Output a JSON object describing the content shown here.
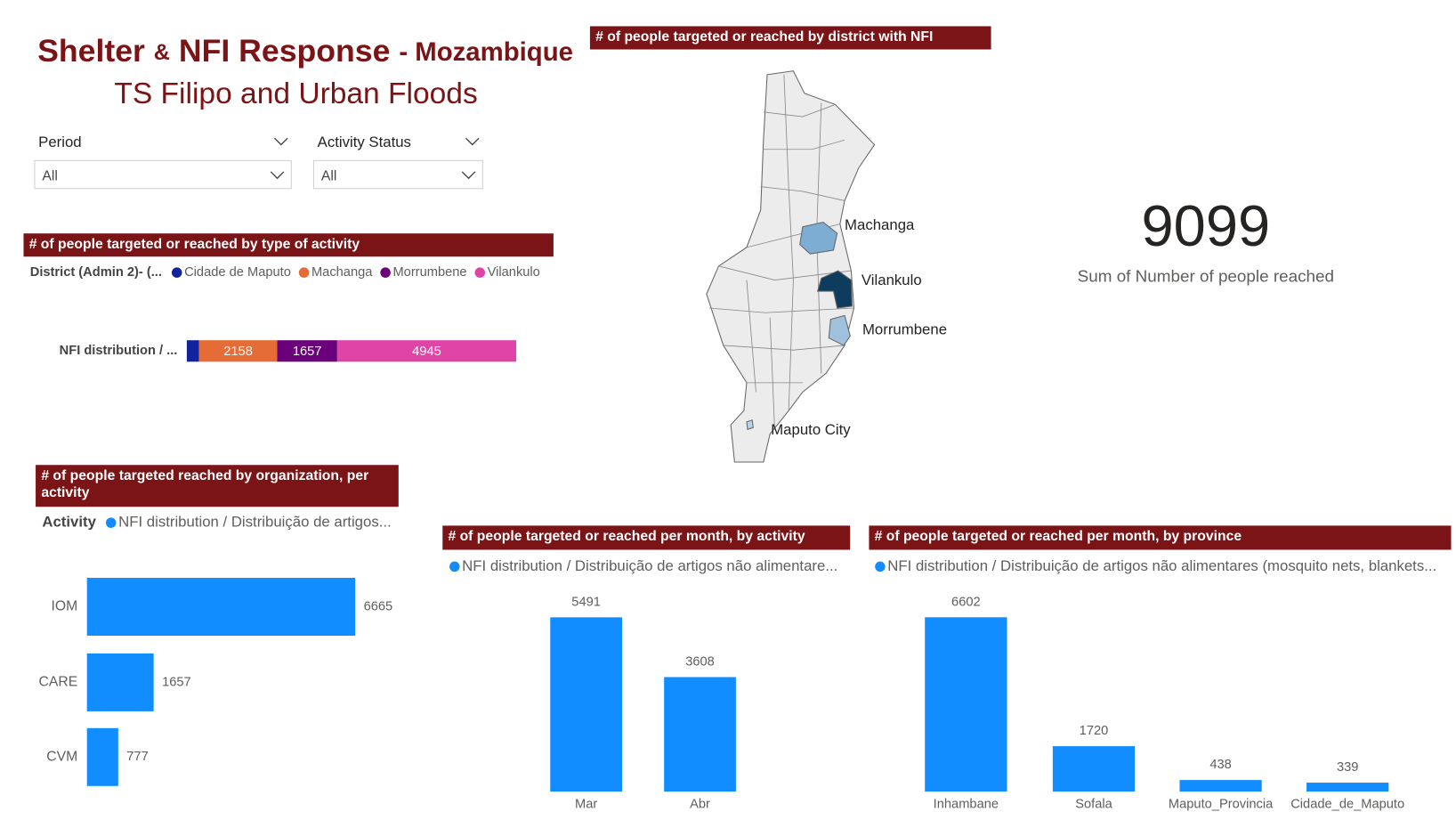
{
  "header": {
    "title_main": "Shelter",
    "title_amp": "&",
    "title_nfi": "NFI Response",
    "title_country": "- Mozambique",
    "subtitle": "TS Filipo and Urban Floods"
  },
  "filters": [
    {
      "label": "Period",
      "value": "All"
    },
    {
      "label": "Activity Status",
      "value": "All"
    }
  ],
  "map": {
    "title": "# of people targeted or reached by district with NFI",
    "labels": [
      "Machanga",
      "Vilankulo",
      "Morrumbene",
      "Maputo City"
    ]
  },
  "kpi": {
    "value": 9099,
    "label": "Sum of Number of people reached"
  },
  "chart_data": [
    {
      "type": "stacked-bar",
      "title": "# of people targeted or reached by type of activity",
      "legend_title": "District (Admin 2)- (...",
      "categories": [
        "NFI distribution / ..."
      ],
      "xlim": [
        0,
        10000
      ],
      "series": [
        {
          "name": "Cidade de Maputo",
          "color": "#12239e",
          "values": [
            339
          ]
        },
        {
          "name": "Machanga",
          "color": "#e66c37",
          "values": [
            2158
          ]
        },
        {
          "name": "Morrumbene",
          "color": "#6b007b",
          "values": [
            1657
          ]
        },
        {
          "name": "Vilankulo",
          "color": "#e044a7",
          "values": [
            4945
          ]
        }
      ]
    },
    {
      "type": "bar",
      "title": "# of people targeted reached by organization, per activity",
      "legend_title": "Activity",
      "categories": [
        "IOM",
        "CARE",
        "CVM"
      ],
      "xlim": [
        0,
        7000
      ],
      "series": [
        {
          "name": "NFI distribution / Distribuição de artigos...",
          "color": "#118dff",
          "values": [
            6665,
            1657,
            777
          ]
        }
      ]
    },
    {
      "type": "column",
      "title": "# of people targeted or reached per month, by activity",
      "categories": [
        "Mar",
        "Abr"
      ],
      "ylim": [
        0,
        6000
      ],
      "series": [
        {
          "name": "NFI distribution / Distribuição de artigos não alimentare...",
          "color": "#118dff",
          "values": [
            5491,
            3608
          ]
        }
      ]
    },
    {
      "type": "column",
      "title": "# of people targeted or reached per month, by province",
      "categories": [
        "Inhambane",
        "Sofala",
        "Maputo_Provincia",
        "Cidade_de_Maputo"
      ],
      "ylim": [
        0,
        7000
      ],
      "series": [
        {
          "name": "NFI distribution / Distribuição de artigos não alimentares (mosquito nets, blankets...",
          "color": "#118dff",
          "values": [
            6602,
            1720,
            438,
            339
          ]
        }
      ]
    }
  ]
}
